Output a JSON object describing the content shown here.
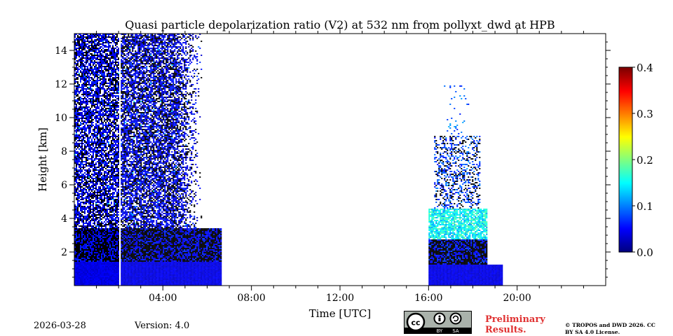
{
  "chart_data": {
    "type": "heatmap",
    "title": "Quasi particle depolarization ratio (V2) at 532 nm from pollyxt_dwd at HPB",
    "xlabel": "Time [UTC]",
    "ylabel": "Height [km]",
    "xlim": [
      0,
      24
    ],
    "ylim": [
      0,
      15
    ],
    "x_ticks": [
      {
        "value": 4,
        "label": "04:00"
      },
      {
        "value": 8,
        "label": "08:00"
      },
      {
        "value": 12,
        "label": "12:00"
      },
      {
        "value": 16,
        "label": "16:00"
      },
      {
        "value": 20,
        "label": "20:00"
      }
    ],
    "y_ticks": [
      {
        "value": 2,
        "label": "2"
      },
      {
        "value": 4,
        "label": "4"
      },
      {
        "value": 6,
        "label": "6"
      },
      {
        "value": 8,
        "label": "8"
      },
      {
        "value": 10,
        "label": "10"
      },
      {
        "value": 12,
        "label": "12"
      },
      {
        "value": 14,
        "label": "14"
      }
    ],
    "colorbar": {
      "min": 0.0,
      "max": 0.4,
      "ticks": [
        {
          "value": 0.0,
          "label": "0.0"
        },
        {
          "value": 0.1,
          "label": "0.1"
        },
        {
          "value": 0.2,
          "label": "0.2"
        },
        {
          "value": 0.3,
          "label": "0.3"
        },
        {
          "value": 0.4,
          "label": "0.4"
        }
      ],
      "colormap": "jet"
    },
    "data_regions": [
      {
        "name": "night-segment-1",
        "start": 0.0,
        "end": 2.0,
        "top": 15.0,
        "typical_value": 0.03
      },
      {
        "name": "night-segment-2",
        "start": 2.1,
        "end": 6.6,
        "top": 15.0,
        "typical_value": 0.03
      },
      {
        "name": "evening-segment",
        "start": 16.0,
        "end": 19.3,
        "top": 12.0,
        "typical_value": 0.05
      }
    ],
    "features": [
      {
        "name": "elevated-aerosol-layer",
        "start": 16.1,
        "end": 18.6,
        "bottom": 2.8,
        "top": 4.6,
        "typical_value": 0.15
      }
    ]
  },
  "footer": {
    "date": "2026-03-28",
    "version": "Version: 4.0",
    "preliminary": "Preliminary Results.",
    "copyright": "© TROPOS and DWD 2026. CC BY SA 4.0 License.",
    "license_badge": {
      "cc": "cc",
      "by": "BY",
      "sa": "SA"
    }
  }
}
